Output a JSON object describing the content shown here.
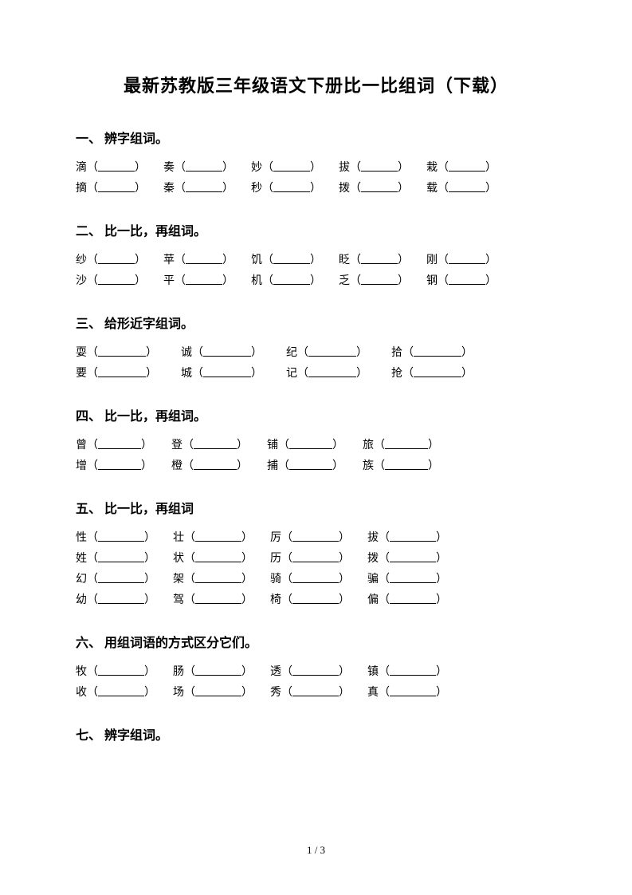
{
  "title": "最新苏教版三年级语文下册比一比组词（下载）",
  "footer": "1 / 3",
  "blank_widths": {
    "s1": 46,
    "s2": 46,
    "s3": 60,
    "s4": 54,
    "s5": 58,
    "s6": 58
  },
  "gaps": {
    "s1": 22,
    "s2": 22,
    "s3": 30,
    "s4": 24,
    "s5": 22,
    "s6": 22
  },
  "sections": [
    {
      "heading": "一、 辨字组词。",
      "blank": "s1",
      "gap": "s1",
      "rows": [
        [
          "滴",
          "奏",
          "妙",
          "拔",
          "栽"
        ],
        [
          "摘",
          "秦",
          "秒",
          "拨",
          "载"
        ]
      ]
    },
    {
      "heading": "二、 比一比，再组词。",
      "blank": "s2",
      "gap": "s2",
      "rows": [
        [
          "纱",
          "苹",
          "饥",
          "眨",
          "刚"
        ],
        [
          "沙",
          "平",
          "机",
          "乏",
          "钢"
        ]
      ]
    },
    {
      "heading": "三、 给形近字组词。",
      "blank": "s3",
      "gap": "s3",
      "rows": [
        [
          "耍",
          "诚",
          "纪",
          "拾"
        ],
        [
          "要",
          "城",
          "记",
          "抢"
        ]
      ]
    },
    {
      "heading": "四、 比一比，再组词。",
      "blank": "s4",
      "gap": "s4",
      "rows": [
        [
          "曾",
          "登",
          "铺",
          "旅"
        ],
        [
          "增",
          "橙",
          "捕",
          "族"
        ]
      ]
    },
    {
      "heading": "五、 比一比，再组词",
      "blank": "s5",
      "gap": "s5",
      "rows": [
        [
          "性",
          "壮",
          "厉",
          "拔"
        ],
        [
          "姓",
          "状",
          "历",
          "拨"
        ],
        [
          "幻",
          "架",
          "骑",
          "骗"
        ],
        [
          "幼",
          "驾",
          "椅",
          "偏"
        ]
      ]
    },
    {
      "heading": "六、 用组词语的方式区分它们。",
      "blank": "s6",
      "gap": "s6",
      "rows": [
        [
          "牧",
          "肠",
          "透",
          "镇"
        ],
        [
          "收",
          "场",
          "秀",
          "真"
        ]
      ]
    },
    {
      "heading": "七、 辨字组词。",
      "rows": []
    }
  ]
}
